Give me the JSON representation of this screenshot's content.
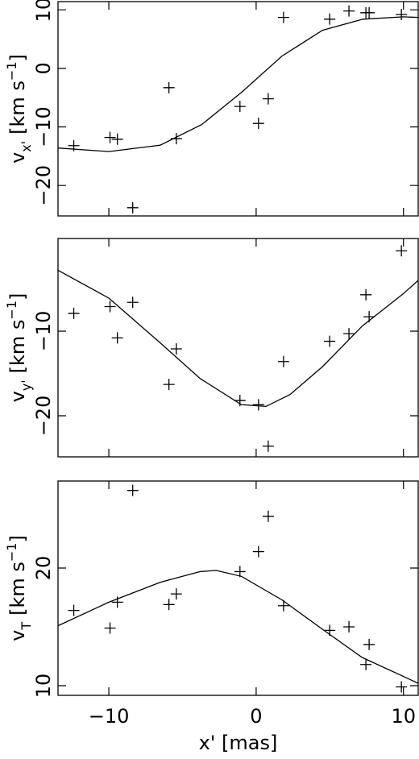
{
  "chart_data": [
    {
      "type": "scatter",
      "color": "#000000",
      "ylabel": {
        "symbol": "v",
        "subscript": "x'",
        "unit": "[km s",
        "exponent": "−1",
        "unit_end": "]"
      },
      "xlim": [
        -13.45,
        11.0
      ],
      "xticks": [
        {
          "value": -10,
          "label": "−10"
        },
        0,
        10
      ],
      "ylim": [
        -25.2,
        11.4
      ],
      "yticks": [
        {
          "value": -20,
          "label": "−20"
        },
        {
          "value": -10,
          "label": "−10"
        },
        0,
        10
      ],
      "x": [
        -12.38,
        -9.92,
        -9.42,
        -8.38,
        -5.92,
        -5.42,
        -1.1,
        0.16,
        0.82,
        1.86,
        4.99,
        6.3,
        7.45,
        7.67,
        9.86
      ],
      "values": [
        -13.2,
        -11.8,
        -12.1,
        -23.8,
        -3.3,
        -12.0,
        -6.5,
        -9.4,
        -5.2,
        8.7,
        8.4,
        9.8,
        9.5,
        9.5,
        9.2
      ],
      "model": {
        "x": [
          -13.45,
          -10,
          -6.5,
          -3.7,
          -1,
          1.75,
          4.5,
          7.25,
          10,
          11.0
        ],
        "values": [
          -13.6,
          -14.2,
          -13.1,
          -9.6,
          -4.1,
          2.1,
          6.5,
          8.4,
          8.8,
          8.7
        ]
      }
    },
    {
      "type": "scatter",
      "color": "#000000",
      "ylabel": {
        "symbol": "v",
        "subscript": "y'",
        "unit": "[km s",
        "exponent": "−1",
        "unit_end": "]"
      },
      "xlim": [
        -13.45,
        11.0
      ],
      "xticks": [
        {
          "value": -10,
          "label": "−10"
        },
        0,
        10
      ],
      "ylim": [
        -24.86,
        0.95
      ],
      "yticks": [
        {
          "value": -20,
          "label": "−20"
        },
        {
          "value": -10,
          "label": "−10"
        }
      ],
      "x": [
        -12.38,
        -9.92,
        -9.42,
        -8.38,
        -5.92,
        -5.42,
        -1.1,
        0.16,
        0.82,
        1.86,
        4.99,
        6.3,
        7.45,
        7.67,
        9.86
      ],
      "values": [
        -7.9,
        -7.1,
        -10.8,
        -6.6,
        -16.3,
        -12.1,
        -18.2,
        -18.7,
        -23.6,
        -13.6,
        -11.2,
        -10.3,
        -5.7,
        -8.3,
        -0.5
      ],
      "model": {
        "x": [
          -13.45,
          -10,
          -6.5,
          -3.8,
          -1.0,
          0.66,
          2.3,
          4.5,
          7.2,
          9.97,
          11.0
        ],
        "values": [
          -2.8,
          -6.1,
          -11.4,
          -15.6,
          -18.7,
          -18.9,
          -17.5,
          -14.2,
          -9.4,
          -5.6,
          -4.0
        ]
      }
    },
    {
      "type": "scatter",
      "color": "#000000",
      "ylabel": {
        "symbol": "v",
        "subscript": "T",
        "unit": "[km s",
        "exponent": "−1",
        "unit_end": "]"
      },
      "xlabel": "x' [mas]",
      "xlim": [
        -13.45,
        11.0
      ],
      "xticks": [
        {
          "value": -10,
          "label": "−10"
        },
        0,
        10
      ],
      "ylim": [
        9.18,
        27.4
      ],
      "yticks": [
        10,
        20
      ],
      "x": [
        -12.38,
        -9.92,
        -9.42,
        -8.38,
        -5.92,
        -5.42,
        -1.1,
        0.16,
        0.82,
        1.86,
        4.99,
        6.3,
        7.45,
        7.67,
        9.86
      ],
      "values": [
        16.4,
        14.9,
        17.1,
        26.6,
        16.9,
        17.8,
        19.7,
        21.4,
        24.4,
        16.8,
        14.7,
        15.0,
        11.8,
        13.5,
        9.9
      ],
      "model": {
        "x": [
          -13.45,
          -10,
          -6.5,
          -3.8,
          -2.7,
          -1.0,
          1.75,
          4.5,
          7.2,
          9.97,
          11.0
        ],
        "values": [
          15.1,
          17.1,
          18.8,
          19.7,
          19.8,
          19.3,
          17.3,
          14.8,
          12.4,
          10.8,
          10.2
        ]
      }
    }
  ]
}
